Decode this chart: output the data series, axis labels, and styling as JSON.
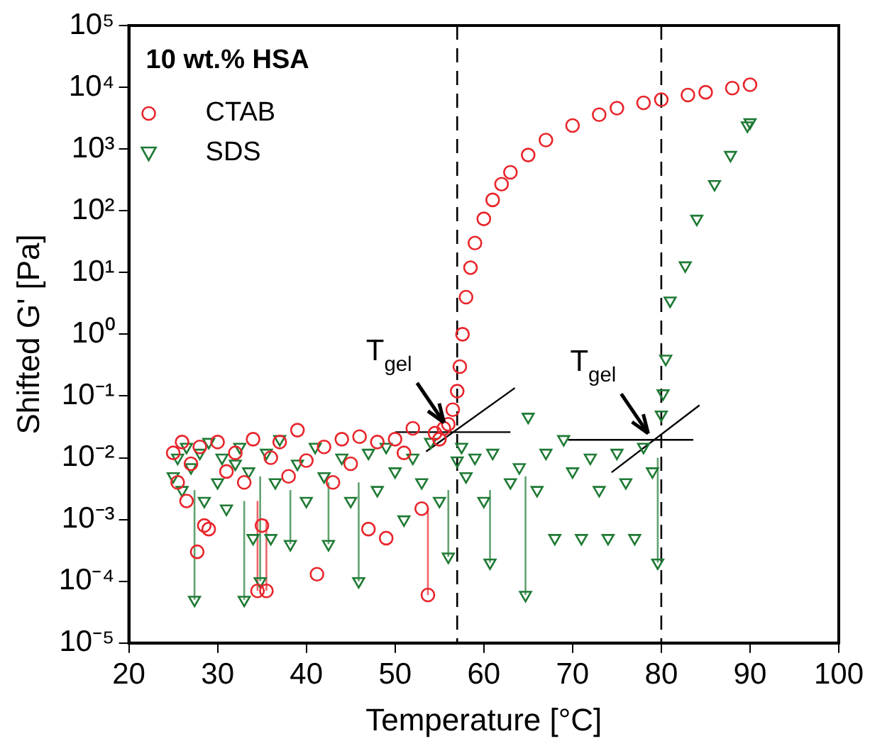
{
  "chart_data": {
    "type": "scatter",
    "title": "10 wt.% HSA",
    "xlabel": "Temperature [°C]",
    "ylabel": "Shifted G' [Pa]",
    "xlim": [
      20,
      100
    ],
    "xticks": [
      20,
      30,
      40,
      50,
      60,
      70,
      80,
      90,
      100
    ],
    "ylim": [
      1e-05,
      100000
    ],
    "yticks": [
      {
        "value": 1e-05,
        "label": "10⁻⁵"
      },
      {
        "value": 0.0001,
        "label": "10⁻⁴"
      },
      {
        "value": 0.001,
        "label": "10⁻³"
      },
      {
        "value": 0.01,
        "label": "10⁻²"
      },
      {
        "value": 0.1,
        "label": "10⁻¹"
      },
      {
        "value": 1,
        "label": "10⁰"
      },
      {
        "value": 10,
        "label": "10¹"
      },
      {
        "value": 100,
        "label": "10²"
      },
      {
        "value": 1000,
        "label": "10³"
      },
      {
        "value": 10000,
        "label": "10⁴"
      },
      {
        "value": 100000,
        "label": "10⁵"
      }
    ],
    "log": "y",
    "grid": false,
    "legend": "top left",
    "series": [
      {
        "name": "CTAB",
        "color": "#e8242a",
        "marker": "circle",
        "x": [
          25,
          25.5,
          26,
          26.5,
          27,
          27.7,
          28,
          28.5,
          29,
          30,
          31,
          32,
          33,
          34,
          34.5,
          35,
          35.5,
          36,
          37,
          38,
          39,
          40,
          41.2,
          42,
          43,
          44,
          45,
          46,
          47,
          48,
          49,
          50,
          51,
          52,
          53,
          53.7,
          54.5,
          55,
          55.5,
          56,
          56.5,
          57,
          57.3,
          57.6,
          58,
          58.5,
          59,
          60,
          61,
          62,
          63,
          65,
          67,
          70,
          73,
          75,
          78,
          80,
          83,
          85,
          88,
          90
        ],
        "values": [
          0.012,
          0.004,
          0.018,
          0.002,
          0.008,
          0.0003,
          0.015,
          0.0008,
          0.0007,
          0.018,
          0.006,
          0.012,
          0.004,
          0.02,
          7e-05,
          0.0008,
          7e-05,
          0.01,
          0.018,
          0.005,
          0.028,
          0.009,
          0.00013,
          0.015,
          0.004,
          0.02,
          0.008,
          0.022,
          0.0007,
          0.018,
          0.0005,
          0.02,
          0.012,
          0.03,
          0.0015,
          6e-05,
          0.025,
          0.02,
          0.03,
          0.035,
          0.06,
          0.12,
          0.3,
          1,
          4,
          12,
          30,
          74,
          150,
          270,
          420,
          800,
          1400,
          2400,
          3600,
          4600,
          5600,
          6300,
          7500,
          8300,
          9700,
          11000
        ],
        "errors": [
          null,
          null,
          null,
          null,
          null,
          null,
          null,
          null,
          null,
          null,
          null,
          null,
          null,
          null,
          [
            7e-05,
            0.002
          ],
          null,
          [
            7e-05,
            0.001
          ],
          null,
          null,
          null,
          null,
          null,
          null,
          null,
          null,
          null,
          null,
          null,
          null,
          null,
          null,
          null,
          null,
          null,
          null,
          [
            6e-05,
            0.0015
          ],
          null,
          null,
          null,
          null,
          null,
          null,
          null,
          null,
          null,
          null,
          null,
          null,
          null,
          null,
          null,
          null,
          null,
          null,
          null,
          null,
          null,
          null,
          null,
          null,
          null,
          null
        ]
      },
      {
        "name": "SDS",
        "color": "#1f7a34",
        "marker": "triangle",
        "x": [
          25,
          25.5,
          26,
          26.5,
          27,
          27.4,
          28,
          28.5,
          29,
          30,
          30.5,
          31,
          32,
          32.5,
          33,
          33.5,
          34,
          34.8,
          35.5,
          36,
          36.5,
          37,
          38.2,
          39,
          40,
          41,
          42,
          42.5,
          44,
          45,
          45.9,
          47,
          48,
          49,
          50,
          51,
          52,
          53,
          54,
          55,
          56,
          57,
          57.5,
          58,
          59,
          60,
          60.7,
          61,
          63,
          64,
          64.7,
          65,
          66,
          67,
          68,
          69,
          70,
          71,
          72,
          73,
          74,
          75,
          76,
          77,
          78,
          79,
          79.6,
          80,
          80.2,
          80.5,
          81,
          82.7,
          84,
          86,
          87.8,
          89.7,
          90
        ],
        "values": [
          0.005,
          0.01,
          0.003,
          0.015,
          0.007,
          5e-05,
          0.012,
          0.002,
          0.018,
          0.004,
          0.01,
          0.0015,
          0.008,
          0.015,
          5e-05,
          0.006,
          0.0005,
          0.0001,
          0.012,
          0.0005,
          0.004,
          0.02,
          0.0004,
          0.008,
          0.002,
          0.015,
          0.005,
          0.0004,
          0.01,
          0.002,
          0.0001,
          0.012,
          0.003,
          0.015,
          0.006,
          0.001,
          0.01,
          0.004,
          0.018,
          0.002,
          0.00025,
          0.009,
          0.015,
          0.005,
          0.01,
          0.002,
          0.0002,
          0.012,
          0.004,
          0.007,
          6e-05,
          0.046,
          0.003,
          0.012,
          0.0005,
          0.02,
          0.006,
          0.0005,
          0.01,
          0.003,
          0.0005,
          0.012,
          0.004,
          0.0005,
          0.015,
          0.006,
          0.0002,
          0.05,
          0.11,
          0.4,
          3.5,
          13,
          74,
          270,
          800,
          2400,
          2700
        ],
        "errors": [
          null,
          null,
          null,
          null,
          null,
          [
            5e-05,
            0.003
          ],
          null,
          null,
          null,
          null,
          null,
          null,
          null,
          null,
          [
            5e-05,
            0.002
          ],
          null,
          null,
          [
            0.0001,
            0.005
          ],
          null,
          null,
          null,
          null,
          [
            0.0004,
            0.003
          ],
          null,
          null,
          null,
          null,
          [
            0.0004,
            0.004
          ],
          null,
          null,
          [
            0.0001,
            0.004
          ],
          null,
          null,
          null,
          null,
          null,
          null,
          null,
          null,
          null,
          [
            0.00025,
            0.003
          ],
          null,
          null,
          null,
          null,
          null,
          [
            0.0002,
            0.003
          ],
          null,
          null,
          null,
          [
            6e-05,
            0.005
          ],
          null,
          null,
          null,
          null,
          null,
          null,
          null,
          null,
          null,
          null,
          null,
          null,
          null,
          null,
          null,
          [
            0.0002,
            0.01
          ],
          null,
          null,
          null,
          null,
          null,
          null,
          null,
          null,
          null,
          null
        ]
      },
      {
        "type": "line",
        "color": "#000000",
        "x": [
          50,
          63
        ],
        "values": [
          0.026,
          0.026
        ]
      },
      {
        "type": "line",
        "color": "#000000",
        "x": [
          53.5,
          63.5
        ],
        "values": [
          0.0126,
          0.135
        ]
      },
      {
        "type": "line",
        "color": "#000000",
        "x": [
          69.5,
          83.6
        ],
        "values": [
          0.0195,
          0.0195
        ]
      },
      {
        "type": "line",
        "color": "#000000",
        "x": [
          74.4,
          84.3
        ],
        "values": [
          0.0058,
          0.071
        ]
      }
    ],
    "ref_lines": [
      {
        "axis": "x",
        "value": 57,
        "color": "#000000",
        "line_style": "dashed"
      },
      {
        "axis": "x",
        "value": 80,
        "color": "#000000",
        "line_style": "dashed"
      }
    ],
    "annotations": [
      {
        "text": "T$_{gel}$",
        "x": 56,
        "y": 0.03
      },
      {
        "text": "T$_{gel}$",
        "x": 79,
        "y": 0.02
      }
    ]
  }
}
